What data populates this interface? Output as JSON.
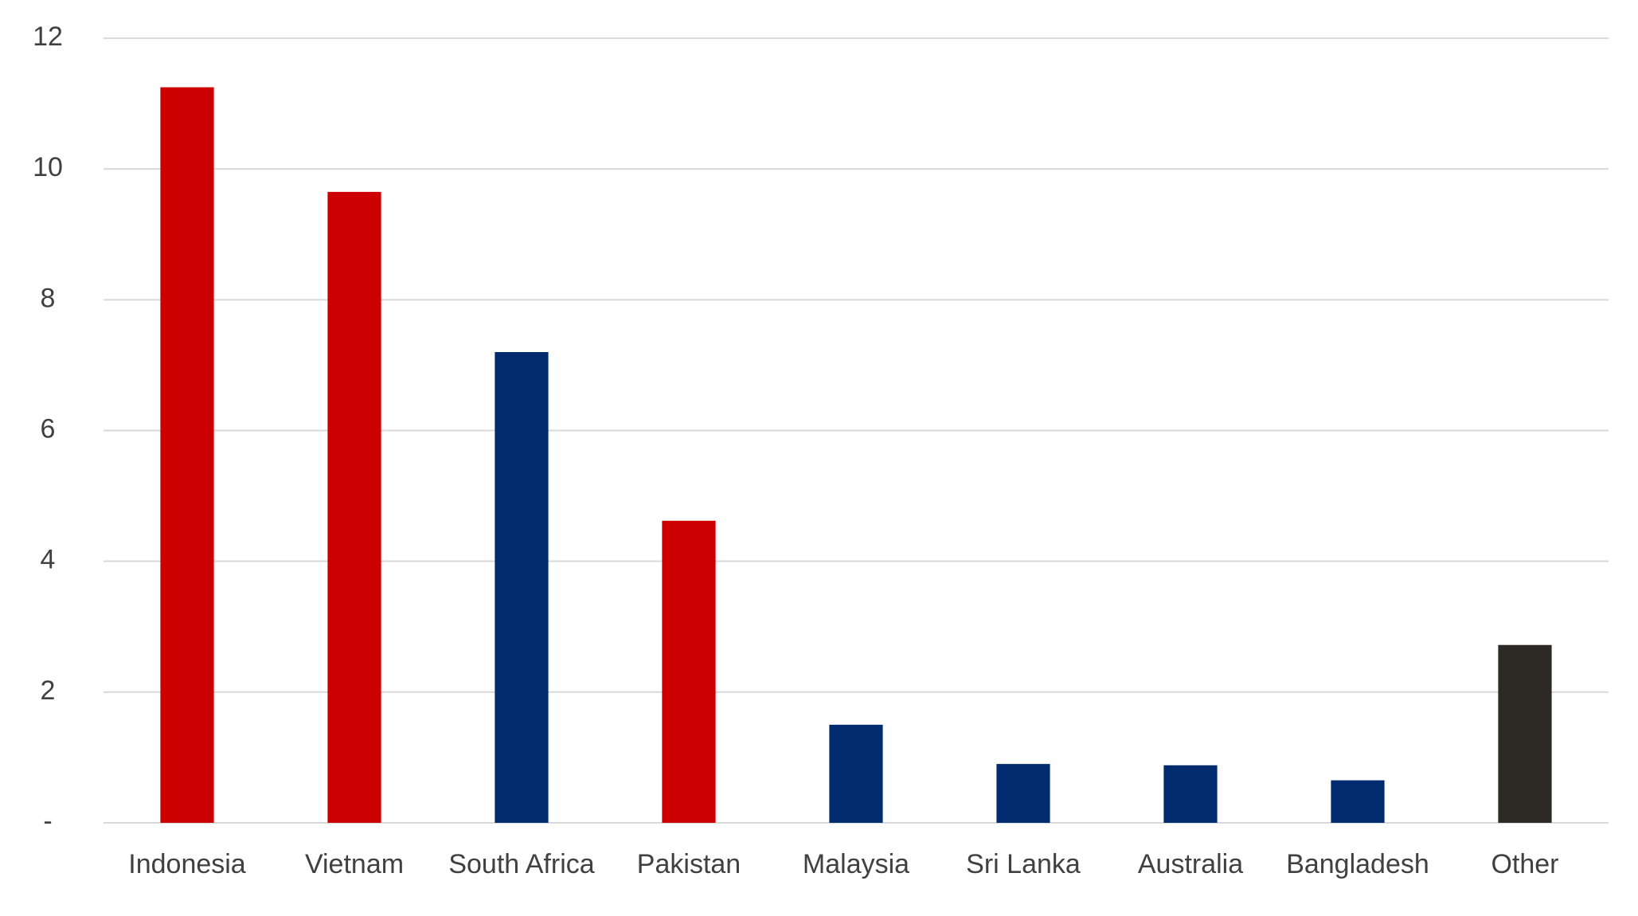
{
  "chart_data": {
    "type": "bar",
    "categories": [
      "Indonesia",
      "Vietnam",
      "South Africa",
      "Pakistan",
      "Malaysia",
      "Sri Lanka",
      "Australia",
      "Bangladesh",
      "Other"
    ],
    "values": [
      11.25,
      9.65,
      7.2,
      4.62,
      1.5,
      0.9,
      0.88,
      0.65,
      2.72
    ],
    "colors": [
      "#cc0000",
      "#cc0000",
      "#002b6f",
      "#cc0000",
      "#002b6f",
      "#002b6f",
      "#002b6f",
      "#002b6f",
      "#2d2a26"
    ],
    "ylim": [
      0,
      12
    ],
    "yticks": [
      {
        "value": 0,
        "label": "-"
      },
      2,
      4,
      6,
      8,
      10,
      12
    ],
    "grid": true
  }
}
